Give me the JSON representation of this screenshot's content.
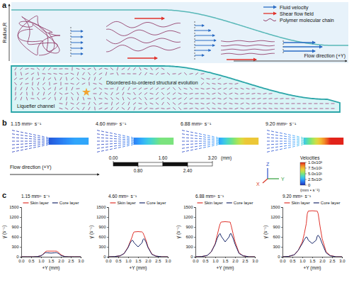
{
  "panels": [
    "a",
    "b",
    "c"
  ],
  "panel_a": {
    "axis_label": "Radius,R",
    "flow_label": "Flow direction (+Y)",
    "legend": [
      {
        "label": "Fluid velocity",
        "color": "#2b6cc4"
      },
      {
        "label": "Shear flow field",
        "color": "#e0322b"
      },
      {
        "label": "Polymer molecular chain",
        "color": "#8b2f5e"
      }
    ],
    "channel_label": "Liquefier channel",
    "evolution_label": "Disordered-to-ordered structural evolution"
  },
  "panel_b": {
    "fields": [
      {
        "label": "1.15 mm³· s⁻¹",
        "peak_velocity": 25
      },
      {
        "label": "4.60 mm³· s⁻¹",
        "peak_velocity": 50
      },
      {
        "label": "6.88 mm³· s⁻¹",
        "peak_velocity": 72
      },
      {
        "label": "9.20 mm³· s⁻¹",
        "peak_velocity": 100
      }
    ],
    "flow_label": "Flow direction (+Y)",
    "scale_bar": {
      "ticks": [
        {
          "value": 0,
          "label": "0.00"
        },
        {
          "value": 0.8,
          "label": "0.80"
        },
        {
          "value": 1.6,
          "label": "1.60"
        },
        {
          "value": 2.4,
          "label": "2.40"
        },
        {
          "value": 3.2,
          "label": "3.20"
        }
      ],
      "unit": "(mm)"
    },
    "axes": [
      "Z",
      "X",
      "Y"
    ],
    "colorbar": {
      "title": "Velocities",
      "unit": "(mm • s⁻¹)",
      "range": [
        0,
        100
      ],
      "ticks": [
        0,
        {
          "value": 25,
          "label": "2.5x10¹"
        },
        {
          "value": 50,
          "label": "5.0x10¹"
        },
        {
          "value": 75,
          "label": "7.5x10¹"
        },
        {
          "value": 100,
          "label": "1.0x10²"
        }
      ]
    }
  },
  "chart_data": [
    {
      "type": "line",
      "title": "1.15 mm³· s⁻¹",
      "xlabel": "+Y (mm)",
      "ylabel": "γ̇ (s⁻¹)",
      "x": [
        0,
        0.3,
        0.6,
        0.8,
        1.0,
        1.1,
        1.2,
        1.25,
        1.3,
        1.5,
        1.7,
        1.75,
        1.8,
        1.9,
        2.0,
        2.2,
        2.4,
        2.7,
        3.0
      ],
      "series": [
        {
          "name": "Skin layer",
          "color": "#e0322b",
          "values": [
            0,
            0,
            0,
            5,
            30,
            80,
            140,
            165,
            170,
            170,
            170,
            170,
            165,
            120,
            60,
            5,
            0,
            0,
            0
          ]
        },
        {
          "name": "Core layer",
          "color": "#1b2a6b",
          "values": [
            0,
            0,
            0,
            5,
            30,
            70,
            120,
            125,
            120,
            110,
            120,
            125,
            120,
            90,
            40,
            5,
            0,
            0,
            0
          ]
        }
      ],
      "xlim": [
        0,
        3
      ],
      "ylim": [
        0,
        1500
      ],
      "xticks": [
        {
          "value": 0,
          "label": "0.0"
        },
        0.5,
        {
          "value": 1,
          "label": "1.0"
        },
        1.5,
        {
          "value": 2,
          "label": "2.0"
        },
        2.5,
        {
          "value": 3,
          "label": "3.0"
        }
      ],
      "yticks": [
        0,
        300,
        600,
        900,
        1200,
        1500
      ],
      "legend": "top"
    },
    {
      "type": "line",
      "title": "4.60 mm³· s⁻¹",
      "xlabel": "+Y (mm)",
      "ylabel": "γ̇ (s⁻¹)",
      "x": [
        0,
        0.3,
        0.6,
        0.8,
        1.0,
        1.1,
        1.2,
        1.25,
        1.3,
        1.5,
        1.7,
        1.75,
        1.8,
        1.9,
        2.0,
        2.2,
        2.4,
        2.7,
        3.0
      ],
      "series": [
        {
          "name": "Skin layer",
          "color": "#e0322b",
          "values": [
            0,
            5,
            30,
            100,
            300,
            450,
            600,
            700,
            750,
            760,
            750,
            720,
            650,
            500,
            300,
            80,
            20,
            0,
            0
          ]
        },
        {
          "name": "Core layer",
          "color": "#1b2a6b",
          "values": [
            0,
            5,
            30,
            100,
            280,
            420,
            500,
            480,
            420,
            300,
            420,
            520,
            550,
            450,
            280,
            70,
            20,
            0,
            0
          ]
        }
      ],
      "xlim": [
        0,
        3
      ],
      "ylim": [
        0,
        1500
      ],
      "xticks": [
        {
          "value": 0,
          "label": "0.0"
        },
        0.5,
        {
          "value": 1,
          "label": "1.0"
        },
        1.5,
        {
          "value": 2,
          "label": "2.0"
        },
        2.5,
        {
          "value": 3,
          "label": "3.0"
        }
      ],
      "yticks": [
        0,
        300,
        600,
        900,
        1200,
        1500
      ],
      "legend": "top"
    },
    {
      "type": "line",
      "title": "6.88 mm³· s⁻¹",
      "xlabel": "+Y (mm)",
      "ylabel": "γ̇ (s⁻¹)",
      "x": [
        0,
        0.3,
        0.6,
        0.8,
        1.0,
        1.1,
        1.2,
        1.25,
        1.3,
        1.5,
        1.7,
        1.75,
        1.8,
        1.9,
        2.0,
        2.2,
        2.4,
        2.7,
        3.0
      ],
      "series": [
        {
          "name": "Skin layer",
          "color": "#e0322b",
          "values": [
            0,
            5,
            40,
            150,
            400,
            650,
            900,
            1000,
            1050,
            1060,
            1050,
            1050,
            950,
            700,
            450,
            120,
            30,
            0,
            0
          ]
        },
        {
          "name": "Core layer",
          "color": "#1b2a6b",
          "values": [
            0,
            5,
            40,
            150,
            380,
            560,
            680,
            700,
            620,
            450,
            600,
            690,
            700,
            560,
            380,
            100,
            30,
            0,
            0
          ]
        }
      ],
      "xlim": [
        0,
        3
      ],
      "ylim": [
        0,
        1500
      ],
      "xticks": [
        {
          "value": 0,
          "label": "0.0"
        },
        0.5,
        {
          "value": 1,
          "label": "1.0"
        },
        1.5,
        {
          "value": 2,
          "label": "2.0"
        },
        2.5,
        {
          "value": 3,
          "label": "3.0"
        }
      ],
      "yticks": [
        0,
        300,
        600,
        900,
        1200,
        1500
      ],
      "legend": "top"
    },
    {
      "type": "line",
      "title": "9.20 mm³· s⁻¹",
      "xlabel": "+Y (mm)",
      "ylabel": "γ̇ (s⁻¹)",
      "x": [
        0,
        0.3,
        0.6,
        0.8,
        1.0,
        1.1,
        1.2,
        1.25,
        1.3,
        1.5,
        1.7,
        1.75,
        1.8,
        1.9,
        2.0,
        2.2,
        2.4,
        2.7,
        3.0
      ],
      "series": [
        {
          "name": "Skin layer",
          "color": "#e0322b",
          "values": [
            0,
            10,
            60,
            200,
            450,
            700,
            1000,
            1300,
            1380,
            1390,
            1380,
            1380,
            1300,
            900,
            550,
            150,
            40,
            0,
            0
          ]
        },
        {
          "name": "Core layer",
          "color": "#1b2a6b",
          "values": [
            0,
            10,
            60,
            200,
            400,
            520,
            600,
            580,
            500,
            400,
            500,
            620,
            650,
            560,
            400,
            120,
            30,
            0,
            0
          ]
        }
      ],
      "xlim": [
        0,
        3
      ],
      "ylim": [
        0,
        1500
      ],
      "xticks": [
        {
          "value": 0,
          "label": "0.0"
        },
        0.5,
        {
          "value": 1,
          "label": "1.0"
        },
        1.5,
        {
          "value": 2,
          "label": "2.0"
        },
        2.5,
        {
          "value": 3,
          "label": "3.0"
        }
      ],
      "yticks": [
        0,
        300,
        600,
        900,
        1200,
        1500
      ],
      "legend": "top"
    }
  ]
}
